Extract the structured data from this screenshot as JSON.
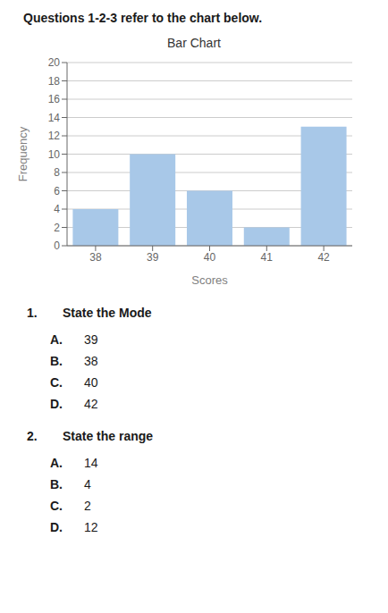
{
  "chart_data": {
    "type": "bar",
    "title": "Bar Chart",
    "xlabel": "Scores",
    "ylabel": "Frequency",
    "categories": [
      38,
      39,
      40,
      41,
      42
    ],
    "values": [
      4,
      10,
      6,
      2,
      13
    ],
    "color": "#a8c8e8",
    "ylim": [
      0,
      20
    ],
    "yticks": [
      0,
      2,
      4,
      6,
      8,
      10,
      12,
      14,
      16,
      18,
      20
    ],
    "grid": true,
    "annotations": [
      [
        "Questions 1-2-3 refer to the chart below."
      ],
      [
        "1.",
        "State the Mode"
      ],
      [
        "A.",
        "39"
      ],
      [
        "B.",
        "38"
      ],
      [
        "C.",
        "40"
      ],
      [
        "D.",
        "42"
      ],
      [
        "2.",
        "State the range"
      ],
      [
        "A.",
        "14"
      ],
      [
        "B.",
        "4"
      ],
      [
        "C.",
        "2"
      ],
      [
        "D.",
        "12"
      ]
    ]
  }
}
